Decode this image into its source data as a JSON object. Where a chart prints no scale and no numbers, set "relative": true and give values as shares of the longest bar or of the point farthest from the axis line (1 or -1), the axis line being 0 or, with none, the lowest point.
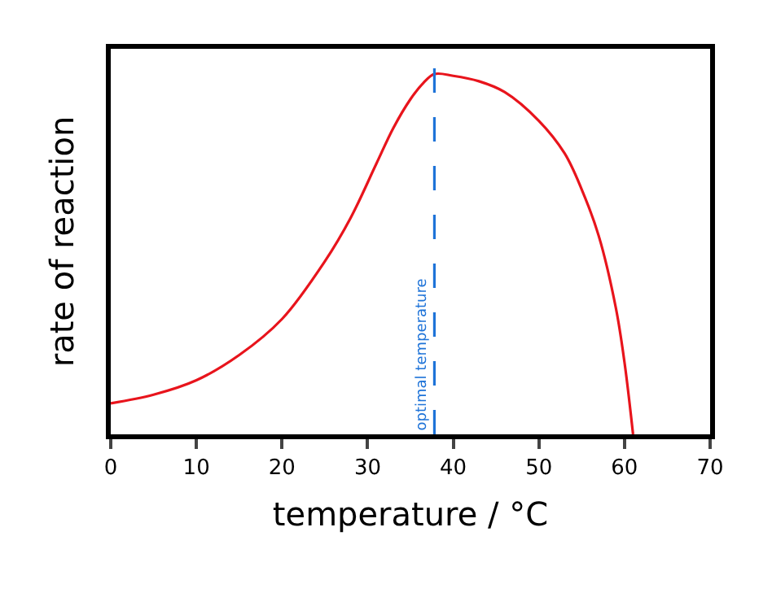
{
  "chart_data": {
    "type": "line",
    "relative": true,
    "xlabel": "temperature / °C",
    "ylabel": "rate of reaction",
    "xlim": [
      0,
      70
    ],
    "xticks": [
      0,
      10,
      20,
      30,
      40,
      50,
      60,
      70
    ],
    "marker": "none",
    "line_style": "solid",
    "x": [
      0,
      5,
      10,
      15,
      20,
      25,
      28,
      31,
      33,
      35,
      36.5,
      37.8,
      40,
      43,
      46,
      50,
      53,
      55,
      57,
      59,
      60,
      61
    ],
    "series": [
      {
        "color": "#e8141c",
        "values": [
          0.086,
          0.11,
          0.15,
          0.22,
          0.32,
          0.48,
          0.6,
          0.75,
          0.85,
          0.93,
          0.975,
          1,
          0.995,
          0.98,
          0.95,
          0.87,
          0.78,
          0.68,
          0.55,
          0.35,
          0.2,
          0
        ]
      }
    ],
    "ref_lines": [
      {
        "axis": "x",
        "value": 37.8,
        "label": "optimal temperature",
        "color": "#1e73d8",
        "line_style": "dashed"
      }
    ]
  }
}
